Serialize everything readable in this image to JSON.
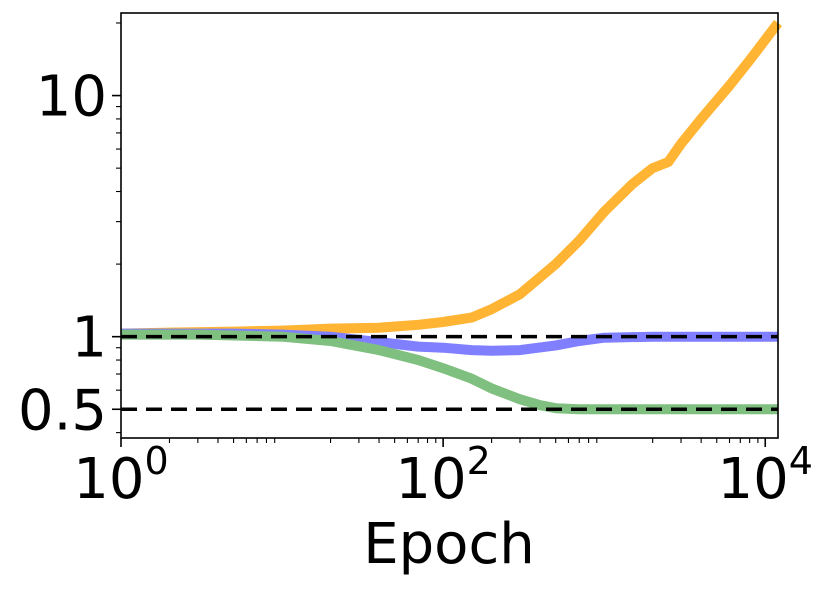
{
  "chart_data": {
    "type": "line",
    "title": "",
    "xlabel": "Epoch",
    "ylabel": "",
    "xscale": "log",
    "yscale": "log",
    "xlim": [
      1,
      12000
    ],
    "ylim": [
      0.38,
      22
    ],
    "grid": false,
    "legend": "none",
    "x_ticks": [
      {
        "value": 1,
        "base": "10",
        "exp": "0"
      },
      {
        "value": 100,
        "base": "10",
        "exp": "2"
      },
      {
        "value": 10000,
        "base": "10",
        "exp": "4"
      }
    ],
    "y_ticks": [
      {
        "value": 0.5,
        "label": "0.5"
      },
      {
        "value": 1,
        "label": "1"
      },
      {
        "value": 10,
        "label": "10"
      }
    ],
    "reference_lines": [
      {
        "y": 1,
        "color": "#000000",
        "style": "dashed"
      },
      {
        "y": 0.5,
        "color": "#000000",
        "style": "dashed"
      }
    ],
    "series": [
      {
        "color": "#FFB433",
        "x": [
          1,
          2,
          5,
          10,
          20,
          40,
          70,
          100,
          150,
          200,
          300,
          500,
          700,
          1000,
          1500,
          2000,
          2500,
          3000,
          4000,
          6000,
          8000,
          12000
        ],
        "y": [
          1.03,
          1.04,
          1.05,
          1.06,
          1.08,
          1.09,
          1.12,
          1.15,
          1.2,
          1.3,
          1.5,
          2.0,
          2.5,
          3.3,
          4.3,
          5.0,
          5.3,
          6.3,
          8.0,
          11.0,
          14.0,
          20.0
        ]
      },
      {
        "color": "#7F7FFF",
        "x": [
          1,
          5,
          10,
          20,
          40,
          70,
          100,
          150,
          200,
          300,
          500,
          700,
          1000,
          2000,
          5000,
          12000
        ],
        "y": [
          1.03,
          1.03,
          1.02,
          1.0,
          0.95,
          0.91,
          0.9,
          0.88,
          0.875,
          0.88,
          0.92,
          0.96,
          0.99,
          1.0,
          1.0,
          1.0
        ]
      },
      {
        "color": "#7FBF7F",
        "x": [
          1,
          3,
          10,
          20,
          40,
          70,
          100,
          150,
          200,
          300,
          400,
          500,
          700,
          1000,
          2000,
          12000
        ],
        "y": [
          1.02,
          1.02,
          1.0,
          0.96,
          0.88,
          0.8,
          0.74,
          0.67,
          0.61,
          0.55,
          0.52,
          0.505,
          0.5,
          0.5,
          0.5,
          0.5
        ]
      }
    ]
  }
}
